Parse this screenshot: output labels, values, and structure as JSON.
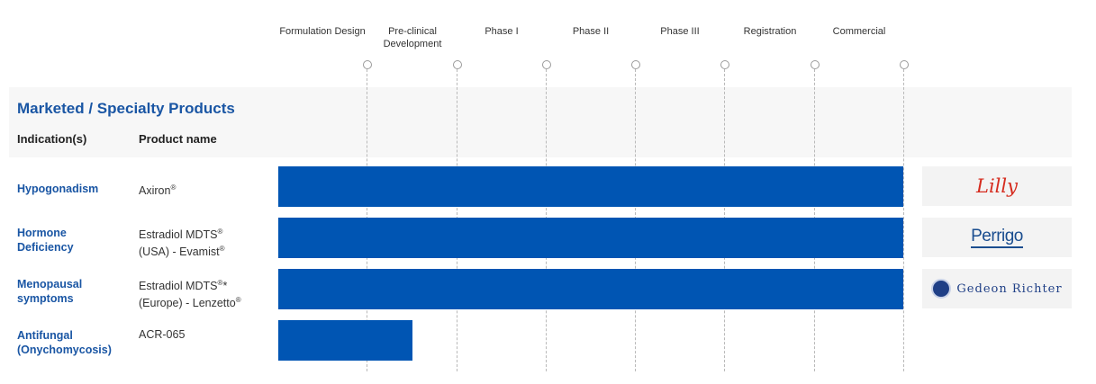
{
  "section": {
    "title": "Marketed / Specialty Products",
    "col_indication": "Indication(s)",
    "col_product": "Product name"
  },
  "chart_data": {
    "type": "bar",
    "orientation": "horizontal",
    "stages": [
      "Formulation Design",
      "Pre-clinical Development",
      "Phase I",
      "Phase II",
      "Phase III",
      "Registration",
      "Commercial"
    ],
    "rows": [
      {
        "indication": "Hypogonadism",
        "product": [
          "Axiron"
        ],
        "stage_reached": 7,
        "partner": "Lilly"
      },
      {
        "indication": "Hormone Deficiency",
        "product": [
          "Estradiol MDTS",
          "(USA) - Evamist"
        ],
        "stage_reached": 7,
        "partner": "Perrigo"
      },
      {
        "indication": "Menopausal symptoms",
        "product": [
          "Estradiol MDTS",
          "(Europe) - Lenzetto"
        ],
        "stage_reached": 7,
        "partner": "Gedeon Richter"
      },
      {
        "indication": "Antifungal (Onychomycosis)",
        "product": [
          "ACR-065"
        ],
        "stage_reached": 1.5,
        "partner": ""
      }
    ],
    "bar_color": "#0055b3"
  }
}
